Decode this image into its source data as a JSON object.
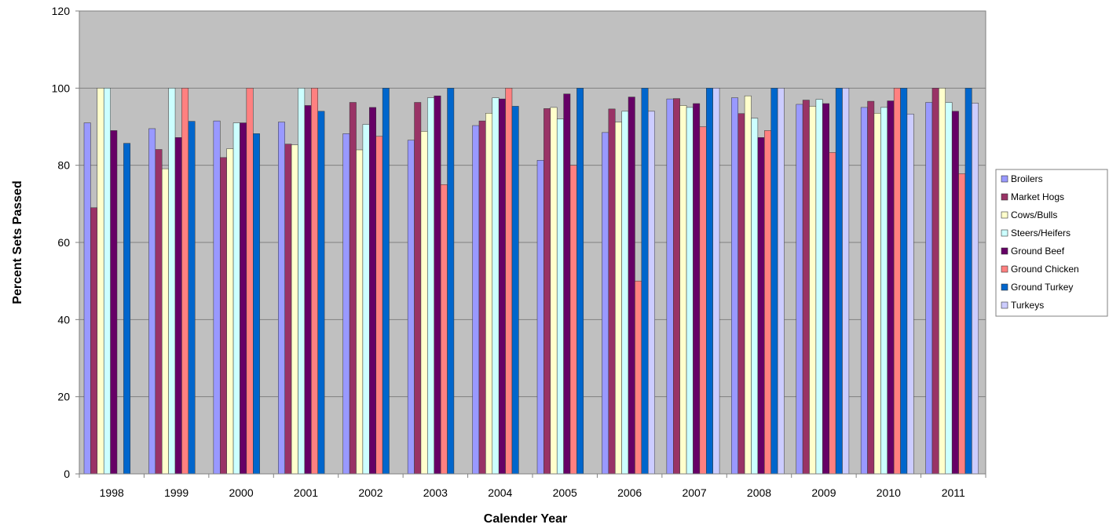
{
  "chart_data": {
    "type": "bar",
    "title": "",
    "xlabel": "Calender Year",
    "ylabel": "Percent Sets Passed",
    "ylim": [
      0,
      120
    ],
    "yticks": [
      0,
      20,
      40,
      60,
      80,
      100,
      120
    ],
    "grid": true,
    "legend_position": "right",
    "plot_background": "#c0c0c0",
    "categories": [
      "1998",
      "1999",
      "2000",
      "2001",
      "2002",
      "2003",
      "2004",
      "2005",
      "2006",
      "2007",
      "2008",
      "2009",
      "2010",
      "2011"
    ],
    "series": [
      {
        "name": "Broilers",
        "color": "#9999ff",
        "values": [
          91,
          89.5,
          91.5,
          91.2,
          88.2,
          86.5,
          90.3,
          81.3,
          88.5,
          97.2,
          97.5,
          95.8,
          95,
          96.3
        ]
      },
      {
        "name": "Market Hogs",
        "color": "#993366",
        "values": [
          69,
          84.1,
          82,
          85.5,
          96.3,
          96.3,
          91.5,
          94.7,
          94.6,
          97.3,
          93.4,
          96.9,
          96.6,
          100
        ]
      },
      {
        "name": "Cows/Bulls",
        "color": "#ffffcc",
        "values": [
          100,
          79.1,
          84.3,
          85.3,
          84,
          88.8,
          93.5,
          95,
          91.2,
          95.5,
          98,
          95.3,
          93.5,
          100
        ]
      },
      {
        "name": "Steers/Heifers",
        "color": "#ccffff",
        "values": [
          100,
          100,
          91,
          100,
          90.6,
          97.5,
          97.5,
          92,
          94,
          95,
          92.2,
          97.1,
          95,
          96.3
        ]
      },
      {
        "name": "Ground Beef",
        "color": "#660066",
        "values": [
          89,
          87.2,
          91,
          95.5,
          95,
          98,
          97.2,
          98.5,
          97.7,
          96,
          87.2,
          96,
          96.7,
          94
        ]
      },
      {
        "name": "Ground Chicken",
        "color": "#ff8080",
        "values": [
          0,
          100,
          100,
          100,
          87.5,
          75,
          100,
          80,
          50,
          90,
          89,
          83.3,
          100,
          77.8
        ]
      },
      {
        "name": "Ground Turkey",
        "color": "#0066cc",
        "values": [
          85.7,
          91.4,
          88.2,
          94,
          100,
          100,
          95.3,
          100,
          100,
          100,
          100,
          100,
          100,
          100
        ]
      },
      {
        "name": "Turkeys",
        "color": "#ccccff",
        "values": [
          0,
          0,
          0,
          0,
          0,
          0,
          0,
          0,
          94,
          100,
          100,
          100,
          93.3,
          96.1
        ]
      }
    ]
  }
}
